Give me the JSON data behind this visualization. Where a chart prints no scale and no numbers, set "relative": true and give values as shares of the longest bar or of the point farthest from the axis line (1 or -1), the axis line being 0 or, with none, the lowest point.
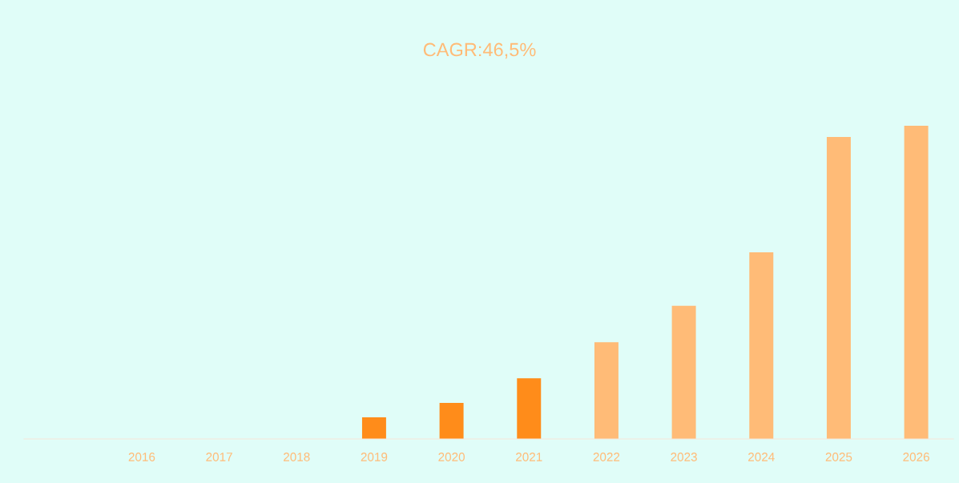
{
  "chart_data": {
    "type": "bar",
    "title": "CAGR:46,5%",
    "relative": true,
    "categories": [
      null,
      "2016",
      "2017",
      "2018",
      "2019",
      "2020",
      "2021",
      "2022",
      "2023",
      "2024",
      "2025",
      "2026"
    ],
    "values": [
      0,
      0,
      0,
      0,
      0.069,
      0.115,
      0.194,
      0.309,
      0.425,
      0.596,
      0.964,
      1
    ],
    "colors": [
      "#ffbb77",
      "#ffbb77",
      "#ffbb77",
      "#ffbb77",
      "#ff8c1a",
      "#ff8c1a",
      "#ff8c1a",
      "#ffbb77",
      "#ffbb77",
      "#ffbb77",
      "#ffbb77",
      "#ffbb77"
    ]
  }
}
